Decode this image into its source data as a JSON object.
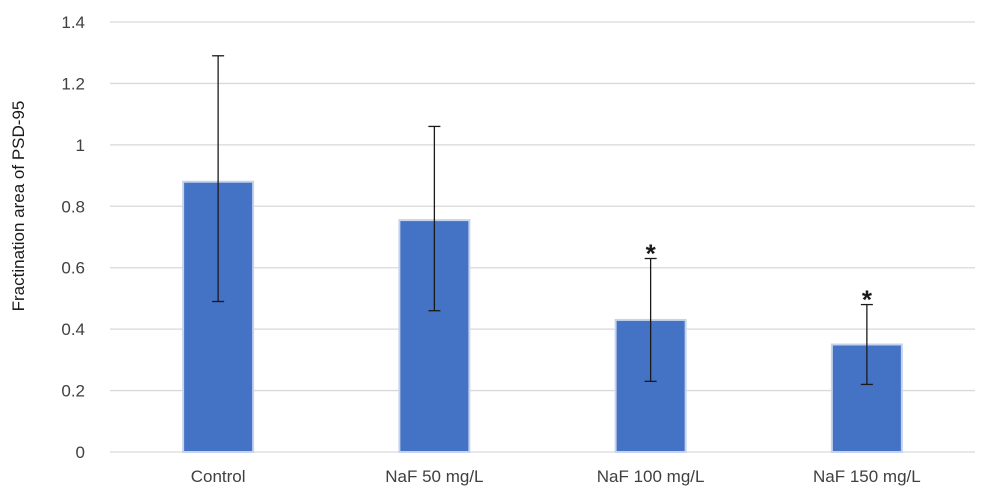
{
  "chart_data": {
    "type": "bar",
    "title": "",
    "xlabel": "",
    "ylabel": "Fractination area of PSD-95",
    "categories": [
      "Control",
      "NaF 50 mg/L",
      "NaF 100 mg/L",
      "NaF 150 mg/L"
    ],
    "values": [
      0.88,
      0.755,
      0.43,
      0.35
    ],
    "error_high": [
      1.29,
      1.06,
      0.63,
      0.48
    ],
    "error_low": [
      0.49,
      0.46,
      0.23,
      0.22
    ],
    "annotations": [
      "",
      "",
      "*",
      "*"
    ],
    "ylim": [
      0,
      1.4
    ],
    "yticks": [
      0,
      0.2,
      0.4,
      0.6,
      0.8,
      1,
      1.2,
      1.4
    ],
    "ytick_labels": [
      "0",
      "0.2",
      "0.4",
      "0.6",
      "0.8",
      "1",
      "1.2",
      "1.4"
    ],
    "grid": true,
    "legend": "none",
    "colors": {
      "bar_fill": "#4472c4",
      "bar_edge": "#c5d3ec",
      "grid": "#d9d9d9",
      "error_bar": "#1a1a1a"
    }
  }
}
